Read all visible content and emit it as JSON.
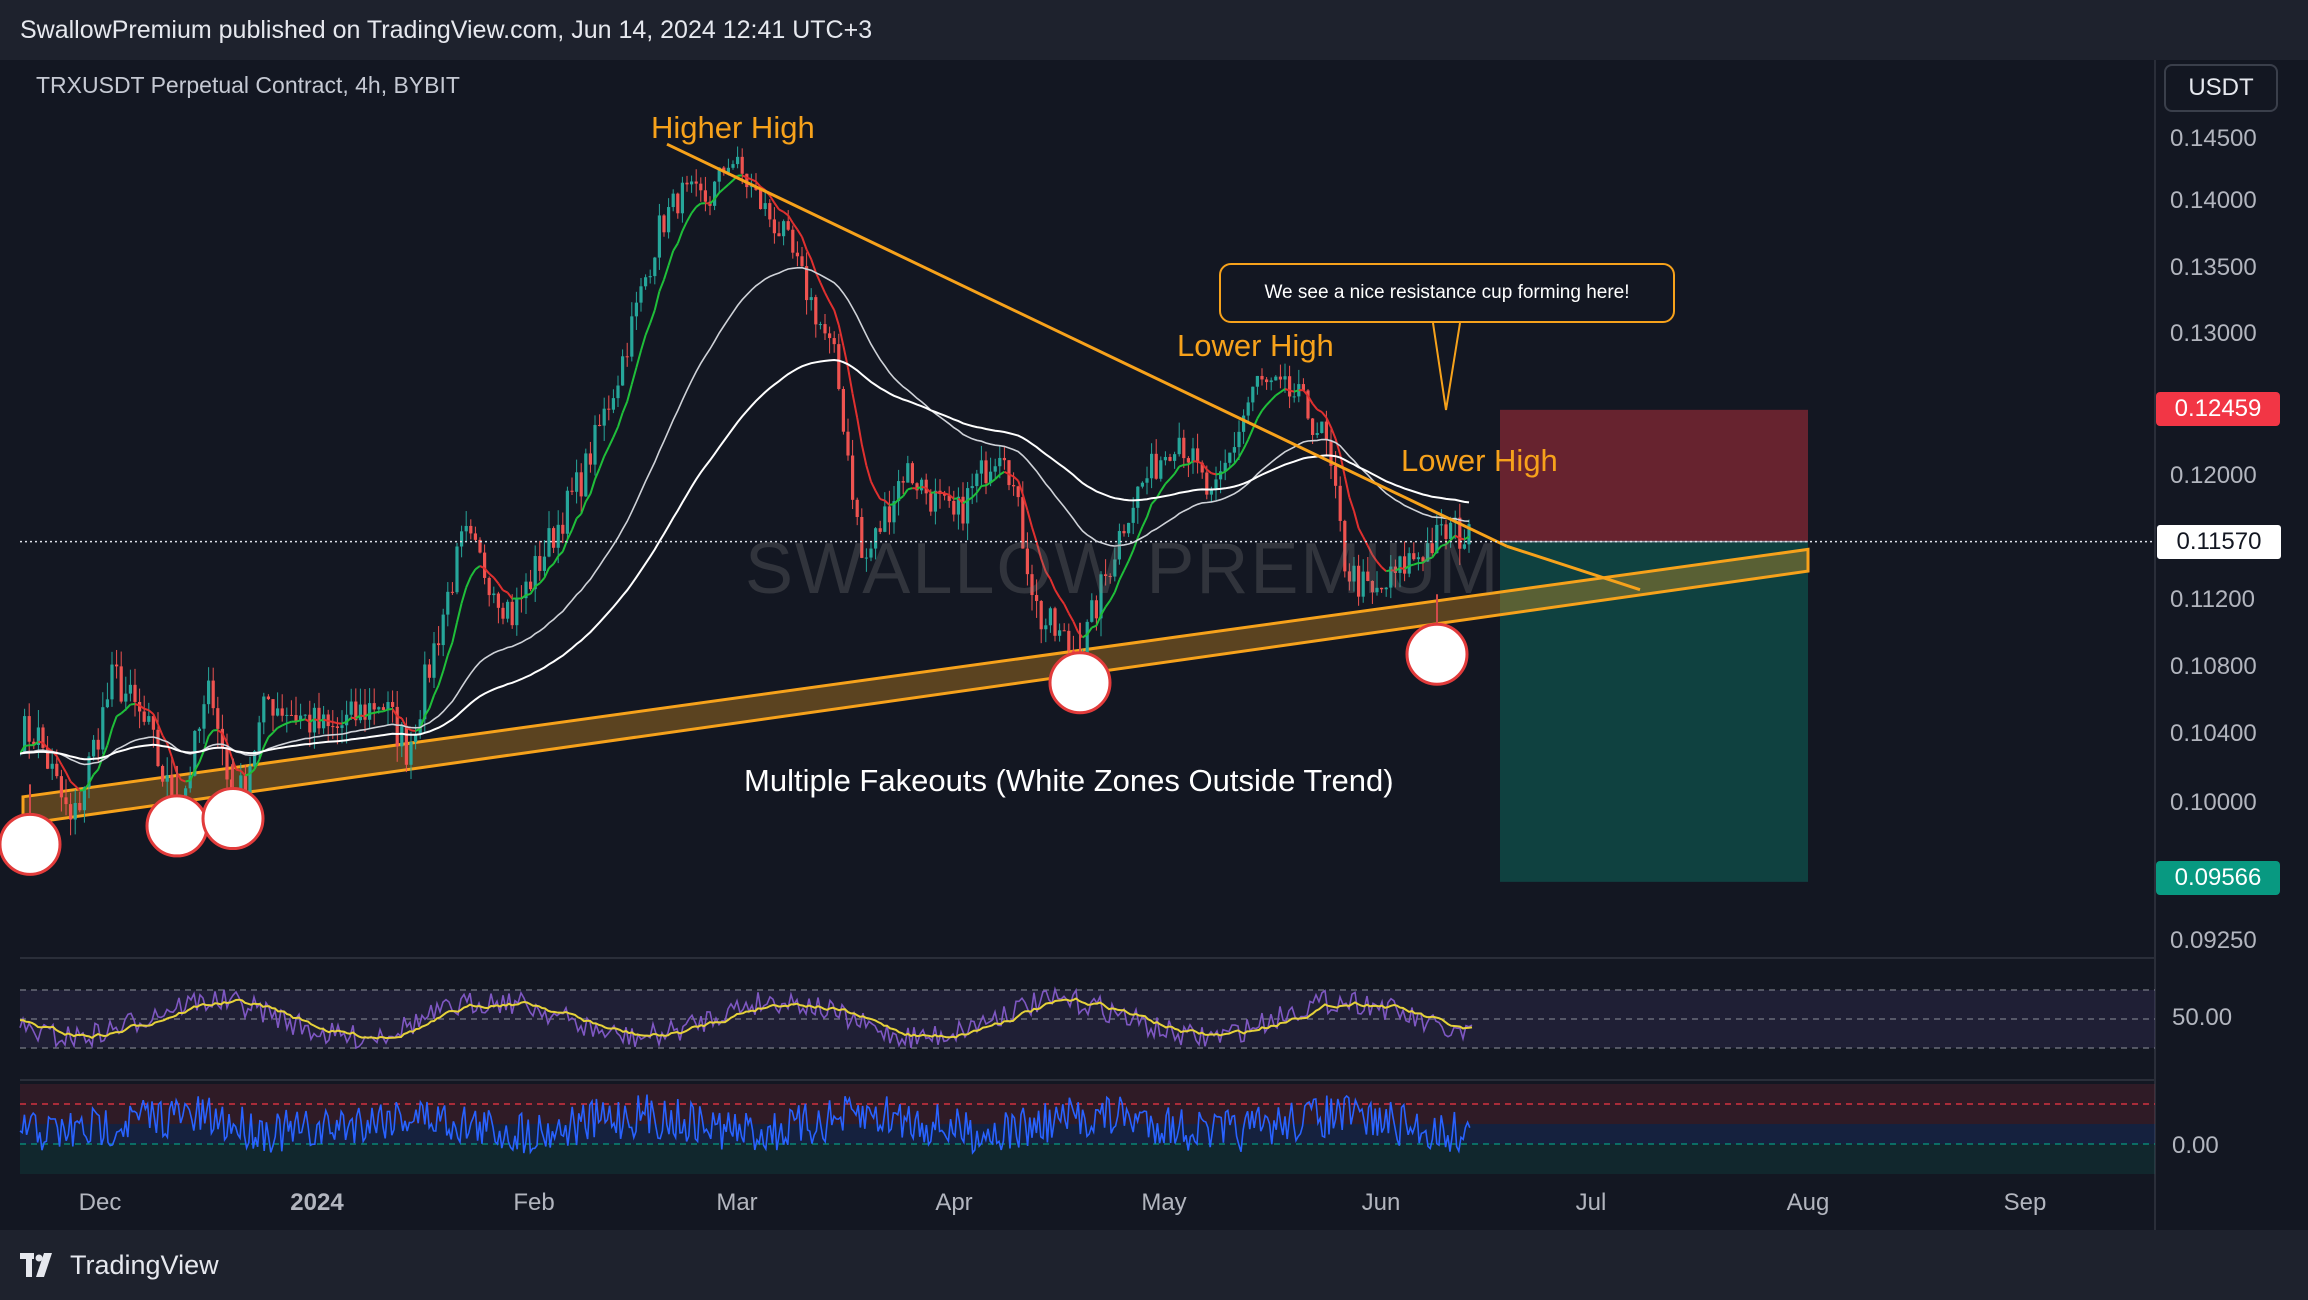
{
  "header": {
    "published_text": "SwallowPremium published on TradingView.com, Jun 14, 2024 12:41 UTC+3"
  },
  "chart_header": {
    "symbol": "TRXUSDT Perpetual Contract, 4h, BYBIT",
    "unit_button": "USDT"
  },
  "watermark": "SWALLOW PREMIUM",
  "annotations": {
    "higher_high": "Higher High",
    "lower_high_1": "Lower High",
    "lower_high_2": "Lower High",
    "callout": "We see a nice resistance cup forming here!",
    "fakeouts": "Multiple Fakeouts (White Zones Outside Trend)"
  },
  "price_labels": {
    "stop": "0.12459",
    "current": "0.11570",
    "target": "0.09566"
  },
  "colors": {
    "background": "#131722",
    "accent_orange": "#f7a21b",
    "stop_red": "#f23645",
    "target_green": "#089981",
    "candle_up": "#26a69a",
    "candle_down": "#ef5350",
    "rsi": "#7e57c2",
    "rsi_ma": "#e6d23a",
    "oscillator": "#2962ff"
  },
  "footer": {
    "brand": "TradingView",
    "logo_icon": "tradingview-logo-icon"
  },
  "chart_data": {
    "type": "candlestick",
    "interval": "4h",
    "y_axis_ticks": [
      "0.14500",
      "0.14000",
      "0.13500",
      "0.13000",
      "0.12000",
      "0.11200",
      "0.10800",
      "0.10400",
      "0.10000",
      "0.09250"
    ],
    "x_axis_ticks": [
      "Dec",
      "2024",
      "Feb",
      "Mar",
      "Apr",
      "May",
      "Jun",
      "Jul",
      "Aug",
      "Sep"
    ],
    "price_path": [
      [
        "2023-11-22",
        0.104
      ],
      [
        "2023-11-27",
        0.0985
      ],
      [
        "2023-12-03",
        0.1075
      ],
      [
        "2023-12-08",
        0.104
      ],
      [
        "2023-12-12",
        0.099
      ],
      [
        "2023-12-17",
        0.107
      ],
      [
        "2023-12-20",
        0.099
      ],
      [
        "2023-12-25",
        0.106
      ],
      [
        "2024-01-03",
        0.104
      ],
      [
        "2024-01-10",
        0.106
      ],
      [
        "2024-01-14",
        0.103
      ],
      [
        "2024-01-22",
        0.116
      ],
      [
        "2024-01-29",
        0.111
      ],
      [
        "2024-02-08",
        0.12
      ],
      [
        "2024-02-13",
        0.127
      ],
      [
        "2024-02-19",
        0.138
      ],
      [
        "2024-02-22",
        0.1405
      ],
      [
        "2024-02-26",
        0.14
      ],
      [
        "2024-02-29",
        0.1435
      ],
      [
        "2024-03-04",
        0.14
      ],
      [
        "2024-03-08",
        0.137
      ],
      [
        "2024-03-15",
        0.128
      ],
      [
        "2024-03-19",
        0.114
      ],
      [
        "2024-03-25",
        0.1205
      ],
      [
        "2024-04-01",
        0.117
      ],
      [
        "2024-04-08",
        0.1225
      ],
      [
        "2024-04-13",
        0.111
      ],
      [
        "2024-04-19",
        0.1085
      ],
      [
        "2024-04-26",
        0.118
      ],
      [
        "2024-05-03",
        0.123
      ],
      [
        "2024-05-08",
        0.118
      ],
      [
        "2024-05-14",
        0.1265
      ],
      [
        "2024-05-20",
        0.1255
      ],
      [
        "2024-05-24",
        0.1225
      ],
      [
        "2024-05-27",
        0.114
      ],
      [
        "2024-05-31",
        0.112
      ],
      [
        "2024-06-05",
        0.1145
      ],
      [
        "2024-06-08",
        0.1155
      ],
      [
        "2024-06-11",
        0.1165
      ],
      [
        "2024-06-14",
        0.1157
      ]
    ],
    "lines": {
      "descending_resistance": [
        [
          "2024-02-20",
          0.1445
        ],
        [
          "2024-06-19",
          0.1154
        ]
      ],
      "ascending_channel_top": [
        [
          "2023-11-20",
          0.1003
        ],
        [
          "2024-08-01",
          0.1152
        ]
      ],
      "ascending_channel_bottom": [
        [
          "2023-11-20",
          0.0988
        ],
        [
          "2024-08-01",
          0.1138
        ]
      ]
    },
    "position": {
      "type": "short",
      "entry": 0.1157,
      "stop": 0.12459,
      "target": 0.09566,
      "start": "2024-06-18",
      "end": "2024-08-01"
    },
    "fakeout_markers": [
      [
        "2023-11-21",
        0.0977
      ],
      [
        "2023-12-12",
        0.0987
      ],
      [
        "2023-12-20",
        0.0991
      ],
      [
        "2024-04-19",
        0.107
      ],
      [
        "2024-06-09",
        0.1087
      ]
    ],
    "rsi_level": "50.00",
    "oscillator_level": "0.00",
    "grid": false
  }
}
